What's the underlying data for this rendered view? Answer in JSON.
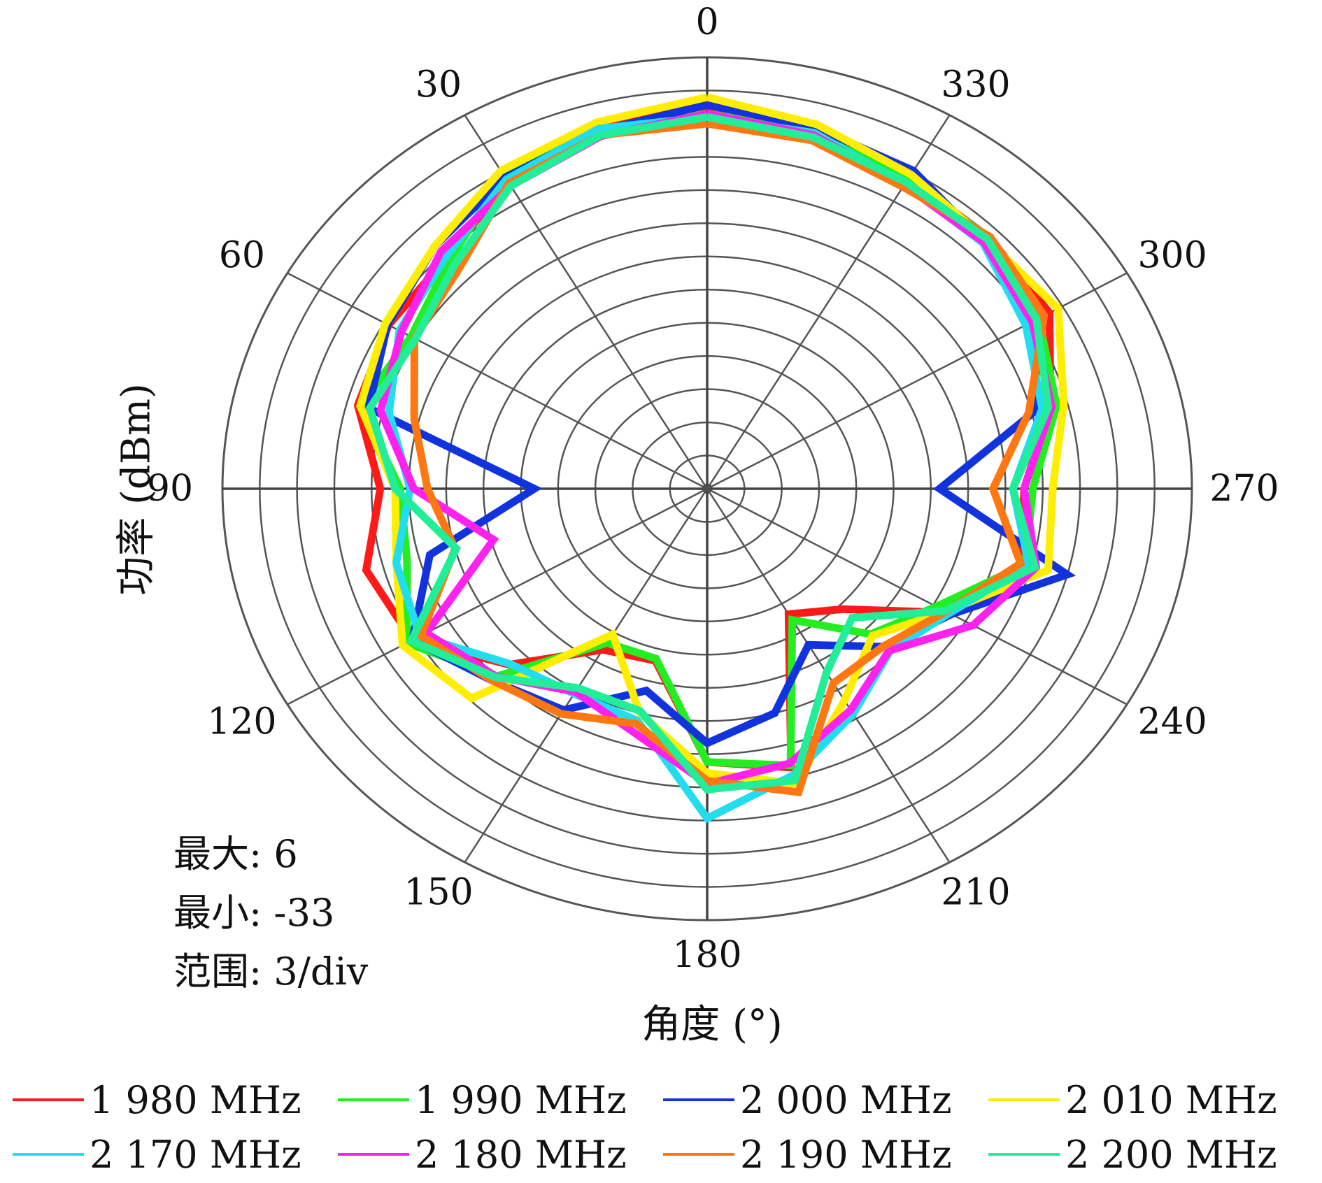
{
  "chart_data": {
    "type": "polar",
    "xlabel": "角度 (°)",
    "ylabel": "功率 (dBm)",
    "angular_axis": {
      "direction": "counterclockwise",
      "zero_at": "top",
      "tick_labels": [
        "0",
        "30",
        "60",
        "90",
        "120",
        "150",
        "180",
        "210",
        "240",
        "270",
        "300",
        "330"
      ]
    },
    "radial_range": [
      -33,
      6
    ],
    "radial_step": 3,
    "grid": true,
    "stats": {
      "max": "最大: 6",
      "min": "最小: -33",
      "range": "范围: 3/div"
    },
    "angles": [
      0,
      15,
      30,
      45,
      60,
      75,
      90,
      105,
      120,
      135,
      150,
      165,
      180,
      195,
      210,
      225,
      240,
      255,
      270,
      285,
      300,
      315,
      330,
      345
    ],
    "series": [
      {
        "name": "1 980 MHz",
        "color": "#ff1a1a",
        "values": [
          1.6,
          1.1,
          -0.9,
          -3.4,
          -3.4,
          -3.9,
          -6.7,
          -4.6,
          -5.6,
          -10.5,
          -16.2,
          -16.9,
          -8.3,
          -6.9,
          -19.9,
          -17.6,
          -10.6,
          -6.8,
          -7.5,
          -4.4,
          -1.2,
          -0.9,
          -0.6,
          0.7
        ]
      },
      {
        "name": "1 990 MHz",
        "color": "#22ee22",
        "values": [
          0.9,
          0.5,
          -0.3,
          -3.7,
          -5.5,
          -4.1,
          -8.3,
          -8.0,
          -5.1,
          -9.0,
          -16.9,
          -17.1,
          -8.3,
          -7.1,
          -19.3,
          -14.4,
          -11.7,
          -6.5,
          -6.8,
          -3.9,
          -2.2,
          -0.9,
          -0.8,
          0.5
        ]
      },
      {
        "name": "2 000 MHz",
        "color": "#1133dd",
        "values": [
          1.7,
          0.5,
          -0.5,
          -2.0,
          -3.3,
          -4.8,
          -19.1,
          -9.9,
          -5.6,
          -8.5,
          -9.9,
          -14.1,
          -10.0,
          -12.0,
          -16.7,
          -12.8,
          -10.3,
          -3.0,
          -14.3,
          -5.6,
          -2.5,
          -1.5,
          0.2,
          0.8
        ]
      },
      {
        "name": "2 010 MHz",
        "color": "#ffee00",
        "values": [
          2.4,
          1.3,
          0.2,
          -2.0,
          -3.1,
          -4.1,
          -7.9,
          -7.1,
          -4.7,
          -6.2,
          -17.8,
          -12.0,
          -7.3,
          -5.4,
          -10.9,
          -14.2,
          -10.8,
          -4.6,
          -5.2,
          -3.3,
          -0.4,
          -1.2,
          -0.2,
          1.1
        ]
      },
      {
        "name": "2 170 MHz",
        "color": "#22ddee",
        "values": [
          0.6,
          0.7,
          -0.7,
          -3.3,
          -4.4,
          -6.5,
          -9.1,
          -7.1,
          -6.3,
          -10.6,
          -11.6,
          -11.3,
          -3.2,
          -6.2,
          -9.5,
          -12.2,
          -10.5,
          -6.2,
          -8.4,
          -5.1,
          -3.4,
          -1.6,
          -1.2,
          0.3
        ]
      },
      {
        "name": "2 180 MHz",
        "color": "#ff22ee",
        "values": [
          0.9,
          0.0,
          -1.4,
          -2.7,
          -4.6,
          -5.8,
          -9.4,
          -15.2,
          -6.9,
          -9.0,
          -11.8,
          -10.2,
          -6.3,
          -7.3,
          -9.9,
          -12.3,
          -8.3,
          -5.6,
          -7.5,
          -4.3,
          -2.8,
          -1.5,
          -1.3,
          0.1
        ]
      },
      {
        "name": "2 190 MHz",
        "color": "#ff7711",
        "values": [
          0.0,
          0.1,
          -1.1,
          -4.8,
          -5.8,
          -8.6,
          -10.5,
          -12.0,
          -6.4,
          -8.5,
          -9.5,
          -11.0,
          -6.6,
          -4.6,
          -12.7,
          -12.9,
          -10.8,
          -6.9,
          -10.0,
          -6.2,
          -1.7,
          -0.8,
          -1.5,
          -0.4
        ]
      },
      {
        "name": "2 200 MHz",
        "color": "#22ee99",
        "values": [
          0.6,
          0.1,
          -1.4,
          -4.3,
          -5.9,
          -4.9,
          -7.9,
          -12.1,
          -5.5,
          -8.9,
          -12.2,
          -12.2,
          -5.8,
          -5.7,
          -13.8,
          -16.5,
          -10.9,
          -5.7,
          -8.4,
          -4.6,
          -2.4,
          -1.1,
          -1.0,
          -0.1
        ]
      }
    ]
  }
}
